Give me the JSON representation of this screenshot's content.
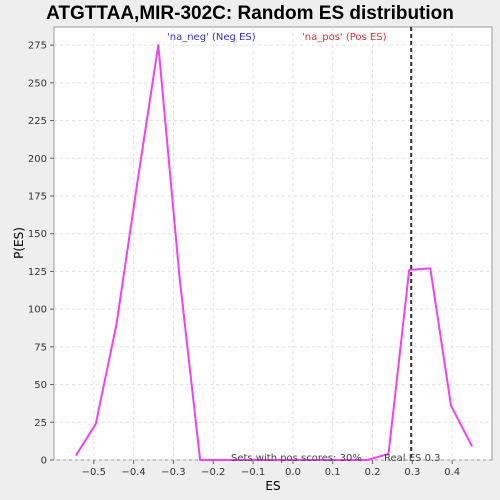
{
  "chart_data": {
    "type": "line",
    "title": "ATGTTAA,MIR-302C: Random ES distribution",
    "xlabel": "ES",
    "ylabel": "P(ES)",
    "xlim": [
      -0.6,
      0.5
    ],
    "ylim": [
      0,
      287
    ],
    "x_ticks": [
      -0.5,
      -0.4,
      -0.3,
      -0.2,
      -0.1,
      0.0,
      0.1,
      0.2,
      0.3,
      0.4
    ],
    "x_tick_labels": [
      "−0.5",
      "−0.4",
      "−0.3",
      "−0.2",
      "−0.1",
      "0.0",
      "0.1",
      "0.2",
      "0.3",
      "0.4"
    ],
    "y_ticks": [
      0,
      25,
      50,
      75,
      100,
      125,
      150,
      175,
      200,
      225,
      250,
      275
    ],
    "y_tick_labels": [
      "0",
      "25",
      "50",
      "75",
      "100",
      "125",
      "150",
      "175",
      "200",
      "225",
      "250",
      "275"
    ],
    "grid": true,
    "series": [
      {
        "color": "#ee44ee",
        "x": [
          -0.545,
          -0.495,
          -0.443,
          -0.39,
          -0.338,
          -0.285,
          -0.233,
          -0.18,
          -0.128,
          -0.075,
          -0.023,
          0.03,
          0.082,
          0.135,
          0.187,
          0.24,
          0.292,
          0.345,
          0.397,
          0.45
        ],
        "y": [
          3,
          24,
          90,
          185,
          275,
          122,
          0,
          0,
          0,
          0,
          0,
          0,
          0,
          0,
          0,
          4,
          126,
          127,
          36,
          9
        ]
      }
    ],
    "legend": {
      "placement": "top",
      "neg_label": "'na_neg' (Neg ES)",
      "neg_color": "#3333cc",
      "pos_label": "'na_pos' (Pos ES)",
      "pos_color": "#dd3333"
    },
    "real_es": {
      "value": 0.297,
      "label": "Real ES 0.3"
    },
    "annotation": "Sets with pos scores: 30%"
  }
}
